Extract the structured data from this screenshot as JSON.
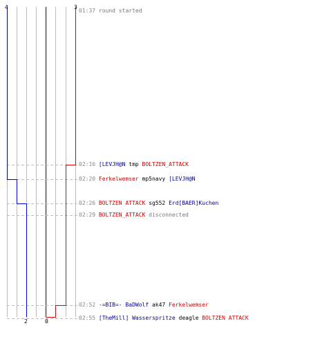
{
  "colors": {
    "team1": "#0000cc",
    "team2": "#dd0000",
    "grid": "#bbbbbb",
    "center": "#777777",
    "dash": "#bbbbbb",
    "time": "#888888"
  },
  "score_labels": {
    "team1_final": "4",
    "team2_final": "3",
    "team1_start": "2",
    "team2_start": "0"
  },
  "events": [
    {
      "time": "01:37",
      "parts": [
        {
          "text": "round started",
          "color": "gray"
        }
      ]
    },
    {
      "time": "02:16",
      "parts": [
        {
          "text": "[LEVJH@N",
          "color": "blue"
        },
        {
          "text": " tmp ",
          "color": "black"
        },
        {
          "text": "BOLTZEN_ATTACK",
          "color": "red"
        }
      ]
    },
    {
      "time": "02:20",
      "parts": [
        {
          "text": "Ferkelwemser",
          "color": "red"
        },
        {
          "text": " mp5navy ",
          "color": "black"
        },
        {
          "text": "[LEVJH@N",
          "color": "blue"
        }
      ]
    },
    {
      "time": "02:26",
      "parts": [
        {
          "text": "BOLTZEN ATTACK",
          "color": "red"
        },
        {
          "text": " sg552 ",
          "color": "black"
        },
        {
          "text": "Erd[BAER]Kuchen",
          "color": "blue"
        }
      ]
    },
    {
      "time": "02:29",
      "parts": [
        {
          "text": "BOLTZEN_ATTACK",
          "color": "red"
        },
        {
          "text": " disconnected",
          "color": "gray"
        }
      ]
    },
    {
      "time": "02:52",
      "parts": [
        {
          "text": "-=BIB=- BaDWolf",
          "color": "blue"
        },
        {
          "text": " ak47 ",
          "color": "black"
        },
        {
          "text": "Ferkelwemser",
          "color": "red"
        }
      ]
    },
    {
      "time": "02:55",
      "parts": [
        {
          "text": "[TheMill] Wasserspritze",
          "color": "blue"
        },
        {
          "text": " deagle ",
          "color": "black"
        },
        {
          "text": "BOLTZEN ATTACK",
          "color": "red"
        }
      ]
    }
  ]
}
